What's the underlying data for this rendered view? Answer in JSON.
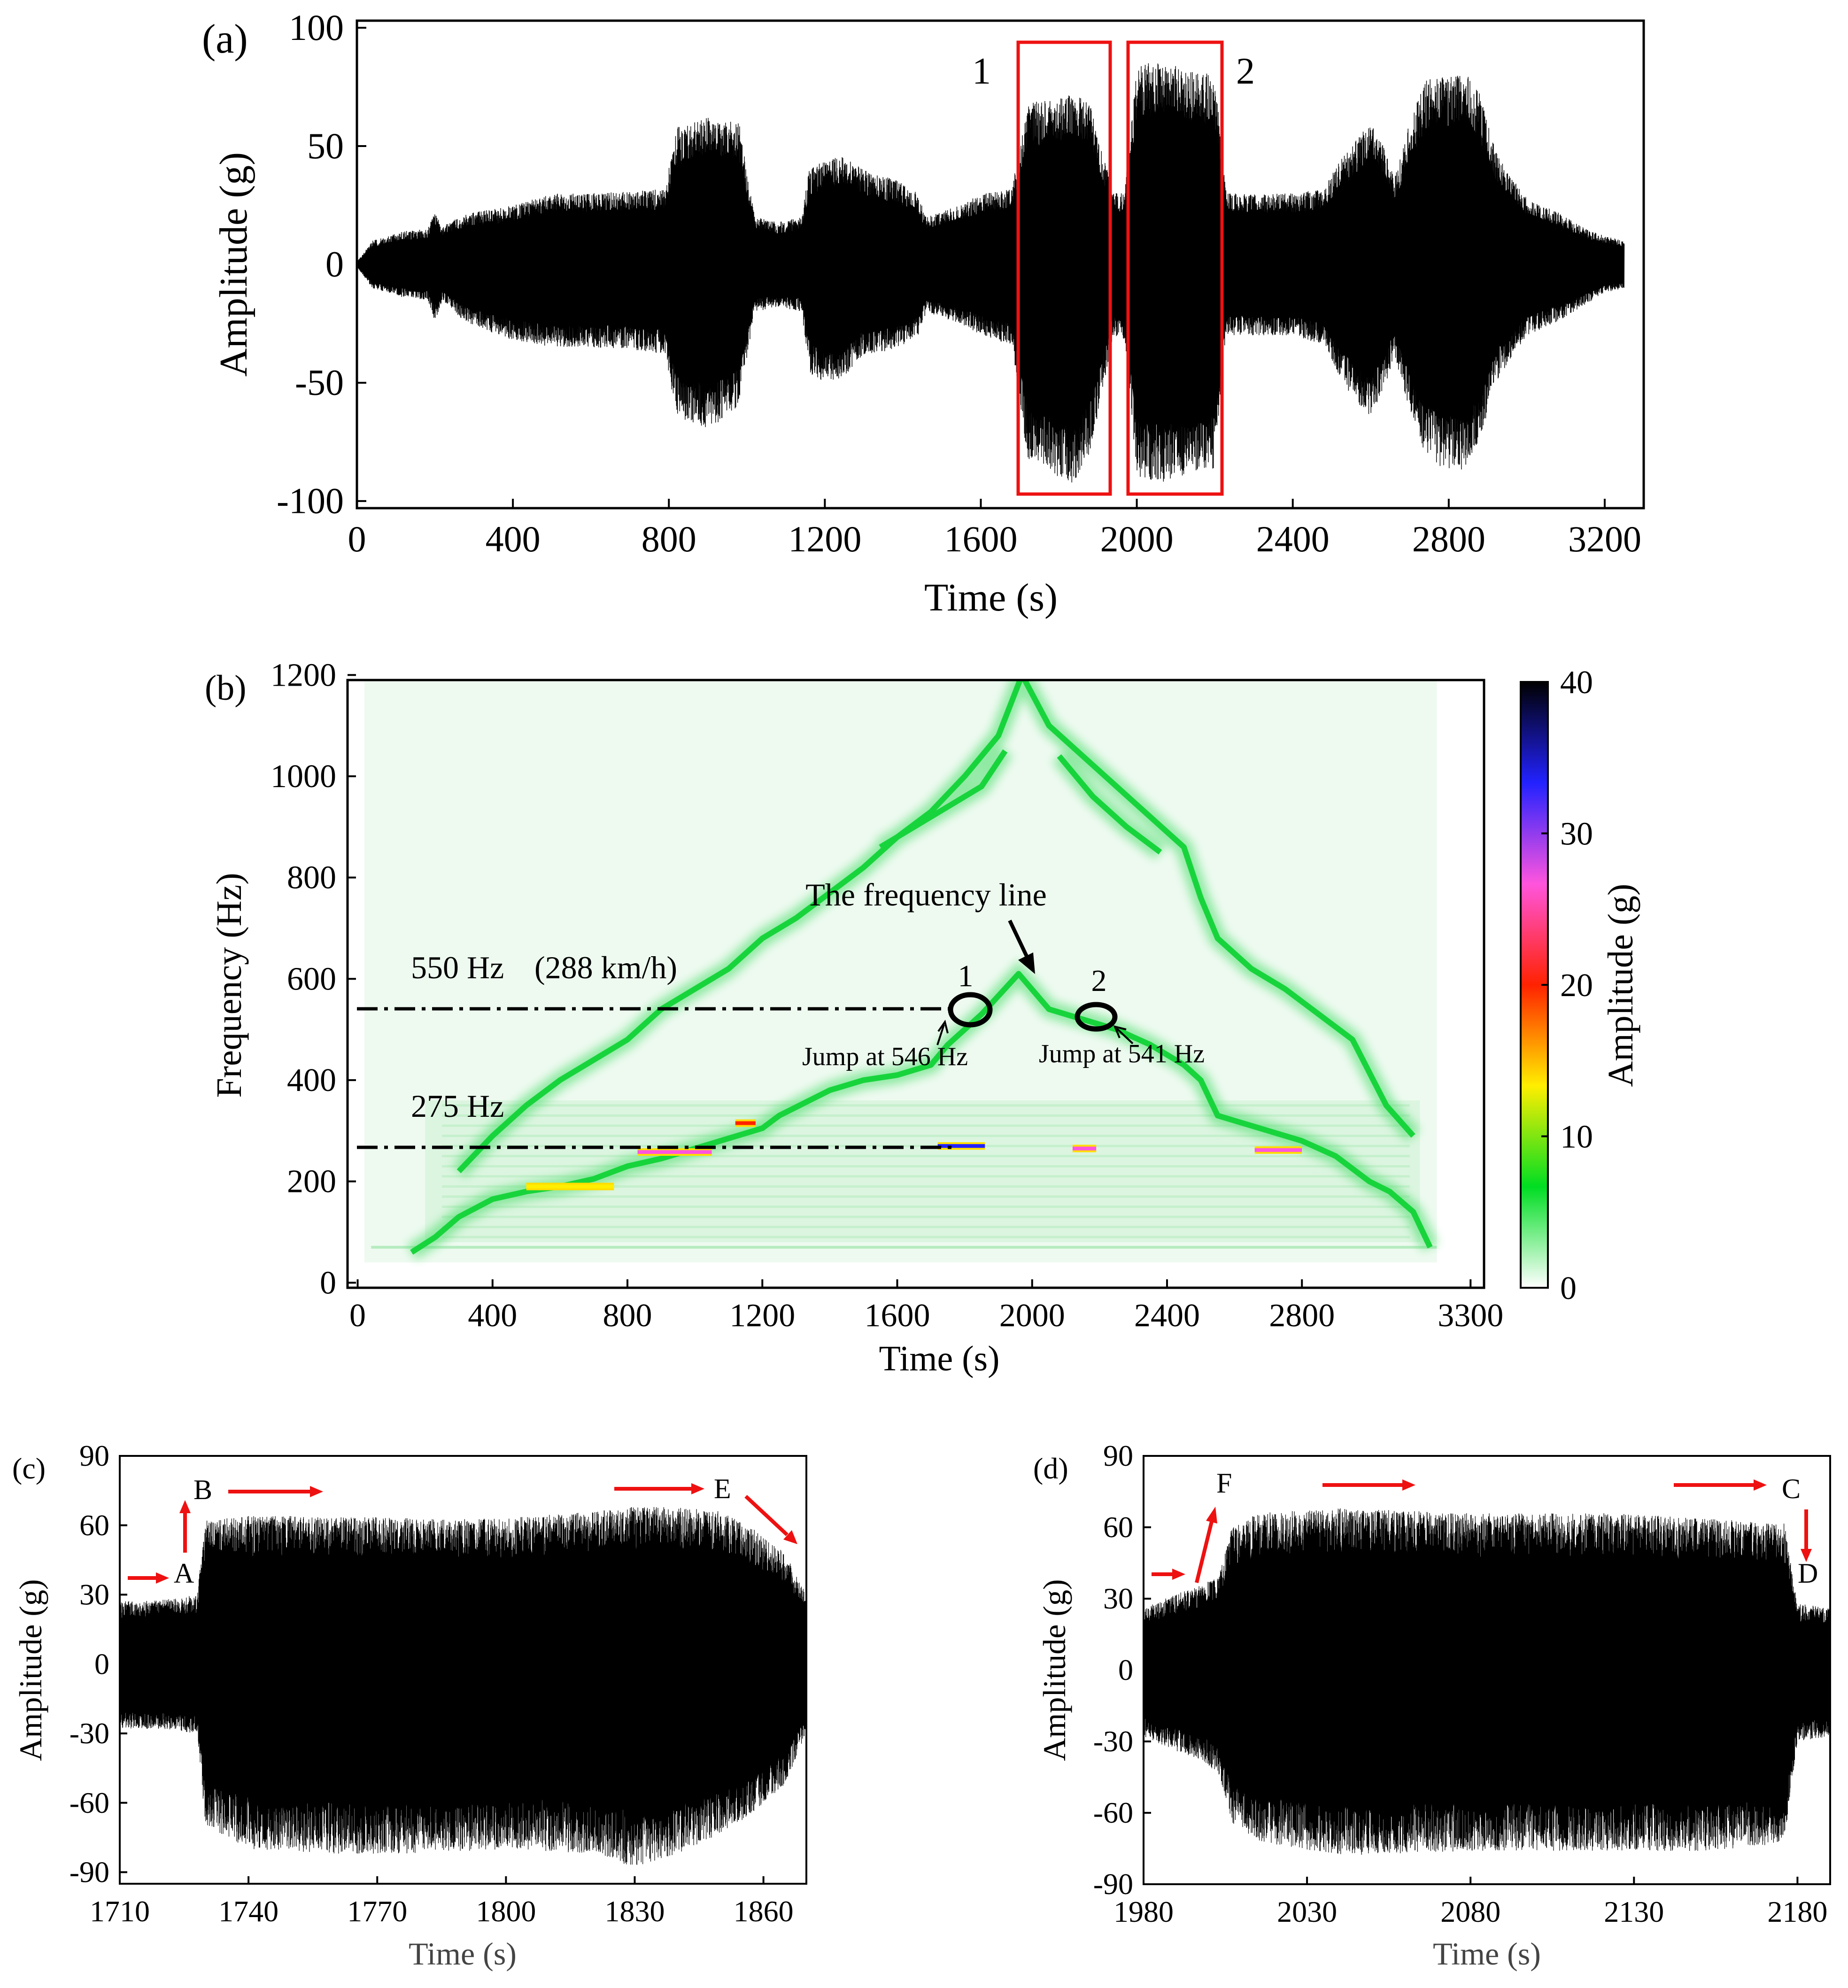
{
  "chart_data": [
    {
      "type": "line",
      "panel_label": "(a)",
      "xlabel": "Time (s)",
      "ylabel": "Amplitude (g)",
      "xlim": [
        0,
        3300
      ],
      "ylim": [
        -103,
        103
      ],
      "xticks": [
        0,
        400,
        800,
        1200,
        1600,
        2000,
        2400,
        2800,
        3200
      ],
      "yticks": [
        -100,
        -50,
        0,
        50,
        100
      ],
      "envelope": {
        "name": "acceleration",
        "t": [
          0,
          40,
          120,
          180,
          200,
          220,
          260,
          300,
          400,
          500,
          600,
          700,
          790,
          820,
          900,
          980,
          1020,
          1080,
          1140,
          1160,
          1200,
          1250,
          1300,
          1380,
          1440,
          1460,
          1560,
          1600,
          1680,
          1720,
          1780,
          1840,
          1880,
          1940,
          1970,
          2000,
          2060,
          2140,
          2200,
          2230,
          2300,
          2400,
          2480,
          2520,
          2560,
          2600,
          2640,
          2660,
          2700,
          2740,
          2780,
          2840,
          2880,
          2920,
          3000,
          3080,
          3140,
          3200,
          3250
        ],
        "upper": [
          1,
          10,
          14,
          15,
          22,
          16,
          20,
          22,
          25,
          30,
          30,
          31,
          32,
          58,
          62,
          60,
          20,
          18,
          20,
          40,
          44,
          46,
          40,
          36,
          30,
          20,
          26,
          30,
          32,
          68,
          70,
          72,
          68,
          30,
          32,
          84,
          86,
          82,
          80,
          30,
          30,
          30,
          32,
          44,
          52,
          60,
          48,
          36,
          60,
          78,
          80,
          82,
          72,
          48,
          28,
          22,
          16,
          12,
          10
        ],
        "lower": [
          -1,
          -10,
          -14,
          -15,
          -24,
          -15,
          -22,
          -26,
          -32,
          -35,
          -35,
          -36,
          -38,
          -64,
          -70,
          -60,
          -20,
          -18,
          -20,
          -46,
          -50,
          -48,
          -38,
          -36,
          -30,
          -20,
          -26,
          -30,
          -34,
          -82,
          -88,
          -94,
          -80,
          -30,
          -32,
          -90,
          -92,
          -90,
          -86,
          -30,
          -30,
          -30,
          -34,
          -48,
          -58,
          -64,
          -50,
          -38,
          -62,
          -80,
          -86,
          -88,
          -74,
          -50,
          -30,
          -24,
          -18,
          -12,
          -10
        ]
      },
      "annotations": [
        {
          "label": "1",
          "x_range": [
            1710,
            1940
          ],
          "y_range": [
            -100,
            92
          ]
        },
        {
          "label": "2",
          "x_range": [
            1980,
            2220
          ],
          "y_range": [
            -100,
            92
          ]
        }
      ]
    },
    {
      "type": "heatmap",
      "panel_label": "(b)",
      "xlabel": "Time (s)",
      "ylabel": "Frequency (Hz)",
      "colorbar_label": "Amplitude (g)",
      "xlim": [
        -30,
        3340
      ],
      "ylim": [
        -10,
        1190
      ],
      "xticks": [
        0,
        400,
        800,
        1200,
        1600,
        2000,
        2400,
        2800,
        3300
      ],
      "yticks": [
        0,
        200,
        400,
        600,
        800,
        1000,
        1200
      ],
      "colorbar_ticks": [
        0,
        10,
        20,
        30,
        40
      ],
      "colorbar_range": [
        0,
        40
      ],
      "colorbar_colors": [
        "#ffffff",
        "#00dd22",
        "#ffee00",
        "#ff2200",
        "#ff55dd",
        "#2222ff",
        "#000000"
      ],
      "ridges": [
        {
          "name": "fundamental",
          "t": [
            160,
            230,
            300,
            400,
            500,
            600,
            700,
            800,
            900,
            1000,
            1100,
            1200,
            1250,
            1400,
            1500,
            1600,
            1700,
            1750,
            1850,
            1960,
            2050,
            2150,
            2250,
            2350,
            2450,
            2500,
            2550,
            2600,
            2700,
            2800,
            2900,
            3000,
            3060,
            3130,
            3180
          ],
          "f": [
            60,
            90,
            130,
            165,
            180,
            190,
            205,
            230,
            245,
            265,
            285,
            305,
            330,
            380,
            400,
            410,
            430,
            470,
            530,
            610,
            540,
            520,
            500,
            470,
            430,
            400,
            330,
            320,
            300,
            280,
            250,
            200,
            180,
            140,
            70
          ]
        },
        {
          "name": "second",
          "t": [
            300,
            400,
            500,
            600,
            700,
            800,
            900,
            1000,
            1100,
            1200,
            1300,
            1400,
            1500,
            1600,
            1700,
            1800,
            1900,
            1970,
            2050,
            2150,
            2250,
            2350,
            2450,
            2500,
            2550,
            2650,
            2750,
            2850,
            2950,
            3050,
            3130
          ],
          "f": [
            220,
            290,
            350,
            400,
            440,
            480,
            540,
            580,
            620,
            680,
            720,
            770,
            820,
            880,
            930,
            1000,
            1080,
            1200,
            1100,
            1040,
            980,
            920,
            860,
            760,
            680,
            620,
            580,
            530,
            480,
            350,
            290
          ]
        },
        {
          "name": "third",
          "t": [
            1550,
            1650,
            1750,
            1850,
            1920
          ],
          "f": [
            860,
            900,
            940,
            980,
            1050
          ]
        },
        {
          "name": "third-right",
          "t": [
            2080,
            2180,
            2280,
            2380
          ],
          "f": [
            1040,
            960,
            900,
            850
          ]
        }
      ],
      "hotspots": [
        {
          "t0": 500,
          "t1": 760,
          "f": 190,
          "level": 14
        },
        {
          "t0": 830,
          "t1": 1050,
          "f": 258,
          "level": 24
        },
        {
          "t0": 1120,
          "t1": 1180,
          "f": 315,
          "level": 18
        },
        {
          "t0": 1720,
          "t1": 1860,
          "f": 270,
          "level": 30
        },
        {
          "t0": 2120,
          "t1": 2190,
          "f": 265,
          "level": 24
        },
        {
          "t0": 2660,
          "t1": 2800,
          "f": 262,
          "level": 26
        }
      ],
      "annotations": [
        {
          "text": "550 Hz",
          "y": 550
        },
        {
          "text": "(288 km/h)",
          "y": 550
        },
        {
          "text": "275 Hz",
          "y": 275
        },
        {
          "text": "The frequency line",
          "x": 1940,
          "y": 610
        },
        {
          "text": "1",
          "x": 1790,
          "y": 530
        },
        {
          "text": "2",
          "x": 2140,
          "y": 530
        },
        {
          "text": "Jump at 546 Hz",
          "x": 1730,
          "y": 546
        },
        {
          "text": "Jump at 541 Hz",
          "x": 2190,
          "y": 541
        }
      ]
    },
    {
      "type": "line",
      "panel_label": "(c)",
      "xlabel": "Time (s)",
      "ylabel": "Amplitude (g)",
      "xlim": [
        1710,
        1870
      ],
      "ylim": [
        -95,
        90
      ],
      "xticks": [
        1710,
        1740,
        1770,
        1800,
        1830,
        1860
      ],
      "yticks": [
        -90,
        -60,
        -30,
        0,
        30,
        60,
        90
      ],
      "envelope": {
        "name": "acceleration",
        "t": [
          1710,
          1720,
          1728,
          1730,
          1740,
          1760,
          1780,
          1800,
          1820,
          1830,
          1840,
          1850,
          1858,
          1865,
          1870
        ],
        "upper": [
          27,
          28,
          30,
          62,
          64,
          64,
          63,
          63,
          66,
          68,
          68,
          66,
          58,
          48,
          30
        ],
        "lower": [
          -28,
          -28,
          -30,
          -70,
          -80,
          -82,
          -82,
          -80,
          -82,
          -88,
          -82,
          -74,
          -64,
          -52,
          -30
        ]
      },
      "markers": [
        {
          "label": "A",
          "x": 1725,
          "y": 30
        },
        {
          "label": "B",
          "x": 1729,
          "y": 62
        },
        {
          "label": "E",
          "x": 1849,
          "y": 68
        }
      ]
    },
    {
      "type": "line",
      "panel_label": "(d)",
      "xlabel": "Time (s)",
      "ylabel": "Amplitude (g)",
      "xlim": [
        1980,
        2190
      ],
      "ylim": [
        -90,
        90
      ],
      "xticks": [
        1980,
        2030,
        2080,
        2130,
        2180
      ],
      "yticks": [
        -90,
        -60,
        -30,
        0,
        30,
        60,
        90
      ],
      "envelope": {
        "name": "acceleration",
        "t": [
          1980,
          1990,
          1998,
          2003,
          2007,
          2015,
          2040,
          2080,
          2120,
          2150,
          2170,
          2176,
          2180,
          2190
        ],
        "upper": [
          26,
          32,
          36,
          40,
          60,
          66,
          68,
          66,
          66,
          64,
          62,
          62,
          28,
          26
        ],
        "lower": [
          -28,
          -34,
          -38,
          -44,
          -64,
          -72,
          -78,
          -76,
          -76,
          -76,
          -74,
          -72,
          -30,
          -28
        ]
      },
      "markers": [
        {
          "label": "F",
          "x": 2004,
          "y": 60
        },
        {
          "label": "C",
          "x": 2175,
          "y": 62
        },
        {
          "label": "D",
          "x": 2176,
          "y": 30
        }
      ]
    }
  ]
}
